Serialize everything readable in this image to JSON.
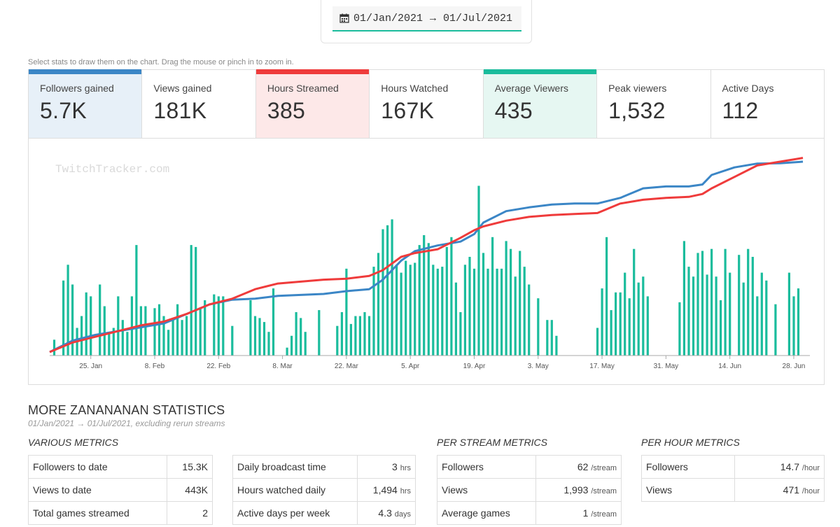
{
  "date_range": {
    "start": "01/Jan/2021",
    "arrow": "→",
    "end": "01/Jul/2021"
  },
  "hint": "Select stats to draw them on the chart. Drag the mouse or pinch in to zoom in.",
  "cards": [
    {
      "label": "Followers gained",
      "value": "5.7K",
      "selected": true,
      "accent": "#3b86c6",
      "bg": "#e7f0f8"
    },
    {
      "label": "Views gained",
      "value": "181K",
      "selected": false,
      "accent": "",
      "bg": "#ffffff"
    },
    {
      "label": "Hours Streamed",
      "value": "385",
      "selected": true,
      "accent": "#ef3b3b",
      "bg": "#fde8e8"
    },
    {
      "label": "Hours Watched",
      "value": "167K",
      "selected": false,
      "accent": "",
      "bg": "#ffffff"
    },
    {
      "label": "Average Viewers",
      "value": "435",
      "selected": true,
      "accent": "#1abc9c",
      "bg": "#e6f7f2"
    },
    {
      "label": "Peak viewers",
      "value": "1,532",
      "selected": false,
      "accent": "",
      "bg": "#ffffff"
    },
    {
      "label": "Active Days",
      "value": "112",
      "selected": false,
      "accent": "",
      "bg": "#ffffff"
    }
  ],
  "chart_data": {
    "type": "bar",
    "watermark": "TwitchTracker.com",
    "x_start_day": 15,
    "x_end_day": 180,
    "ticks": [
      {
        "day": 24,
        "label": "25. Jan"
      },
      {
        "day": 38,
        "label": "8. Feb"
      },
      {
        "day": 52,
        "label": "22. Feb"
      },
      {
        "day": 66,
        "label": "8. Mar"
      },
      {
        "day": 80,
        "label": "22. Mar"
      },
      {
        "day": 94,
        "label": "5. Apr"
      },
      {
        "day": 108,
        "label": "19. Apr"
      },
      {
        "day": 122,
        "label": "3. May"
      },
      {
        "day": 136,
        "label": "17. May"
      },
      {
        "day": 150,
        "label": "31. May"
      },
      {
        "day": 164,
        "label": "14. Jun"
      },
      {
        "day": 178,
        "label": "28. Jun"
      }
    ],
    "bars_name": "Average Viewers",
    "bars_color": "#1abc9c",
    "bars_ylim": [
      0,
      1000
    ],
    "bars": [
      [
        16,
        80
      ],
      [
        18,
        380
      ],
      [
        19,
        460
      ],
      [
        20,
        360
      ],
      [
        21,
        140
      ],
      [
        22,
        200
      ],
      [
        23,
        320
      ],
      [
        24,
        300
      ],
      [
        26,
        360
      ],
      [
        27,
        250
      ],
      [
        28,
        120
      ],
      [
        29,
        140
      ],
      [
        30,
        300
      ],
      [
        31,
        180
      ],
      [
        32,
        120
      ],
      [
        33,
        300
      ],
      [
        34,
        560
      ],
      [
        35,
        250
      ],
      [
        36,
        250
      ],
      [
        38,
        240
      ],
      [
        39,
        260
      ],
      [
        40,
        200
      ],
      [
        41,
        130
      ],
      [
        42,
        180
      ],
      [
        43,
        260
      ],
      [
        44,
        180
      ],
      [
        45,
        200
      ],
      [
        46,
        560
      ],
      [
        47,
        550
      ],
      [
        48,
        240
      ],
      [
        49,
        280
      ],
      [
        51,
        310
      ],
      [
        52,
        300
      ],
      [
        53,
        300
      ],
      [
        55,
        150
      ],
      [
        59,
        280
      ],
      [
        60,
        200
      ],
      [
        61,
        190
      ],
      [
        62,
        170
      ],
      [
        63,
        120
      ],
      [
        64,
        340
      ],
      [
        67,
        40
      ],
      [
        68,
        100
      ],
      [
        69,
        220
      ],
      [
        70,
        190
      ],
      [
        71,
        120
      ],
      [
        74,
        230
      ],
      [
        78,
        150
      ],
      [
        79,
        220
      ],
      [
        80,
        440
      ],
      [
        81,
        160
      ],
      [
        82,
        200
      ],
      [
        83,
        200
      ],
      [
        84,
        220
      ],
      [
        85,
        200
      ],
      [
        86,
        450
      ],
      [
        87,
        520
      ],
      [
        88,
        640
      ],
      [
        89,
        660
      ],
      [
        90,
        690
      ],
      [
        91,
        460
      ],
      [
        92,
        420
      ],
      [
        93,
        480
      ],
      [
        94,
        460
      ],
      [
        95,
        470
      ],
      [
        96,
        560
      ],
      [
        97,
        610
      ],
      [
        98,
        570
      ],
      [
        99,
        460
      ],
      [
        100,
        440
      ],
      [
        101,
        450
      ],
      [
        102,
        550
      ],
      [
        103,
        600
      ],
      [
        104,
        370
      ],
      [
        105,
        220
      ],
      [
        106,
        460
      ],
      [
        107,
        500
      ],
      [
        108,
        440
      ],
      [
        109,
        860
      ],
      [
        110,
        520
      ],
      [
        111,
        440
      ],
      [
        112,
        600
      ],
      [
        113,
        440
      ],
      [
        114,
        440
      ],
      [
        115,
        580
      ],
      [
        116,
        540
      ],
      [
        117,
        400
      ],
      [
        118,
        530
      ],
      [
        119,
        450
      ],
      [
        120,
        360
      ],
      [
        122,
        290
      ],
      [
        124,
        180
      ],
      [
        125,
        180
      ],
      [
        126,
        100
      ],
      [
        135,
        140
      ],
      [
        136,
        340
      ],
      [
        137,
        600
      ],
      [
        138,
        230
      ],
      [
        139,
        320
      ],
      [
        140,
        320
      ],
      [
        141,
        420
      ],
      [
        142,
        290
      ],
      [
        143,
        540
      ],
      [
        144,
        370
      ],
      [
        145,
        400
      ],
      [
        146,
        300
      ],
      [
        153,
        270
      ],
      [
        154,
        580
      ],
      [
        155,
        450
      ],
      [
        156,
        400
      ],
      [
        157,
        520
      ],
      [
        158,
        530
      ],
      [
        159,
        410
      ],
      [
        160,
        540
      ],
      [
        161,
        400
      ],
      [
        162,
        280
      ],
      [
        163,
        540
      ],
      [
        164,
        420
      ],
      [
        166,
        510
      ],
      [
        167,
        370
      ],
      [
        168,
        540
      ],
      [
        169,
        500
      ],
      [
        170,
        300
      ],
      [
        171,
        420
      ],
      [
        172,
        380
      ],
      [
        174,
        260
      ],
      [
        177,
        420
      ],
      [
        178,
        300
      ],
      [
        179,
        340
      ]
    ],
    "lines_ylim": [
      0,
      1000
    ],
    "series": [
      {
        "name": "Followers gained",
        "color": "#3b86c6",
        "x": [
          15,
          20,
          25,
          30,
          35,
          40,
          45,
          50,
          55,
          60,
          65,
          70,
          75,
          80,
          85,
          88,
          92,
          95,
          100,
          105,
          108,
          110,
          115,
          120,
          125,
          130,
          135,
          140,
          145,
          150,
          155,
          158,
          160,
          165,
          170,
          175,
          180
        ],
        "values": [
          0,
          60,
          90,
          110,
          130,
          150,
          200,
          250,
          275,
          280,
          295,
          300,
          305,
          320,
          330,
          380,
          480,
          530,
          560,
          580,
          620,
          680,
          740,
          760,
          775,
          780,
          780,
          810,
          860,
          870,
          870,
          880,
          930,
          970,
          990,
          992,
          1000
        ]
      },
      {
        "name": "Hours Streamed",
        "color": "#ef3b3b",
        "x": [
          15,
          20,
          25,
          30,
          35,
          40,
          45,
          50,
          55,
          60,
          65,
          70,
          75,
          80,
          85,
          88,
          92,
          95,
          100,
          105,
          108,
          110,
          115,
          120,
          125,
          130,
          135,
          140,
          145,
          150,
          155,
          158,
          160,
          165,
          170,
          175,
          180
        ],
        "values": [
          0,
          50,
          80,
          110,
          140,
          160,
          200,
          250,
          280,
          330,
          360,
          370,
          380,
          385,
          400,
          430,
          500,
          520,
          540,
          600,
          640,
          660,
          690,
          710,
          720,
          725,
          730,
          780,
          800,
          810,
          815,
          830,
          860,
          920,
          980,
          1000,
          1020
        ]
      }
    ]
  },
  "stats": {
    "title": "MORE ZANANANAN STATISTICS",
    "subtitle": "01/Jan/2021 → 01/Jul/2021, excluding rerun streams",
    "various_title": "VARIOUS METRICS",
    "per_stream_title": "PER STREAM METRICS",
    "per_hour_title": "PER HOUR METRICS",
    "various_a": [
      {
        "label": "Followers to date",
        "value": "15.3K",
        "unit": ""
      },
      {
        "label": "Views to date",
        "value": "443K",
        "unit": ""
      },
      {
        "label": "Total games streamed",
        "value": "2",
        "unit": ""
      }
    ],
    "various_b": [
      {
        "label": "Daily broadcast time",
        "value": "3",
        "unit": "hrs"
      },
      {
        "label": "Hours watched daily",
        "value": "1,494",
        "unit": "hrs"
      },
      {
        "label": "Active days per week",
        "value": "4.3",
        "unit": "days"
      }
    ],
    "per_stream": [
      {
        "label": "Followers",
        "value": "62",
        "unit": "/stream"
      },
      {
        "label": "Views",
        "value": "1,993",
        "unit": "/stream"
      },
      {
        "label": "Average games",
        "value": "1",
        "unit": "/stream"
      }
    ],
    "per_hour": [
      {
        "label": "Followers",
        "value": "14.7",
        "unit": "/hour"
      },
      {
        "label": "Views",
        "value": "471",
        "unit": "/hour"
      }
    ]
  }
}
